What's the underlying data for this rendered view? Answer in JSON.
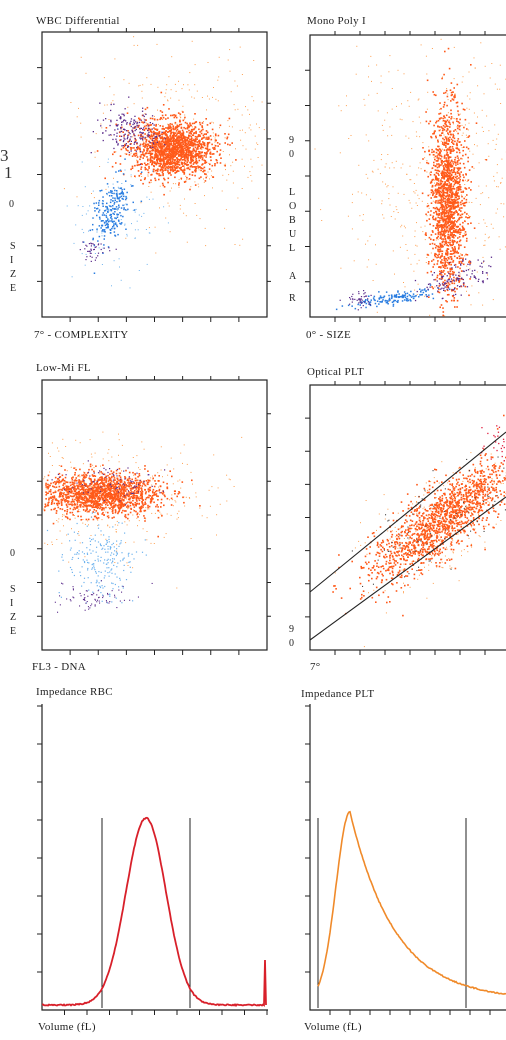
{
  "page_numbers": [
    "3",
    "1"
  ],
  "panels": [
    {
      "id": "wbc",
      "title": "WBC Differential",
      "x_label": "7° - COMPLEXITY",
      "y_side_text": [
        "0",
        "S",
        "I",
        "Z",
        "E"
      ]
    },
    {
      "id": "mono",
      "title": "Mono Poly I",
      "x_label": "0° - SIZE",
      "y_side_text": [
        "9",
        "0",
        "L",
        "O",
        "B",
        "U",
        "L",
        "A",
        "R"
      ]
    },
    {
      "id": "lowmi",
      "title": "Low-Mi FL",
      "x_label": "FL3 - DNA",
      "y_side_text": [
        "0",
        "S",
        "I",
        "Z",
        "E"
      ]
    },
    {
      "id": "oplt",
      "title": "Optical PLT",
      "x_label": "7°",
      "y_side_text": [
        "9",
        "0"
      ]
    },
    {
      "id": "irbc",
      "title": "Impedance RBC",
      "x_label": "Volume (fL)",
      "y_side_text": []
    },
    {
      "id": "iplt",
      "title": "Impedance PLT",
      "x_label": "Volume (fL)",
      "y_side_text": []
    }
  ],
  "colors": {
    "neutrophil": "#ff5a1a",
    "neutrophil_light": "#ffa050",
    "lymphocyte": "#2a7de0",
    "lymphocyte_light": "#6fb3ee",
    "monocyte": "#5a2a8a",
    "rbc_curve": "#d8202a",
    "plt_curve": "#f08a2a",
    "axis": "#222222"
  }
}
